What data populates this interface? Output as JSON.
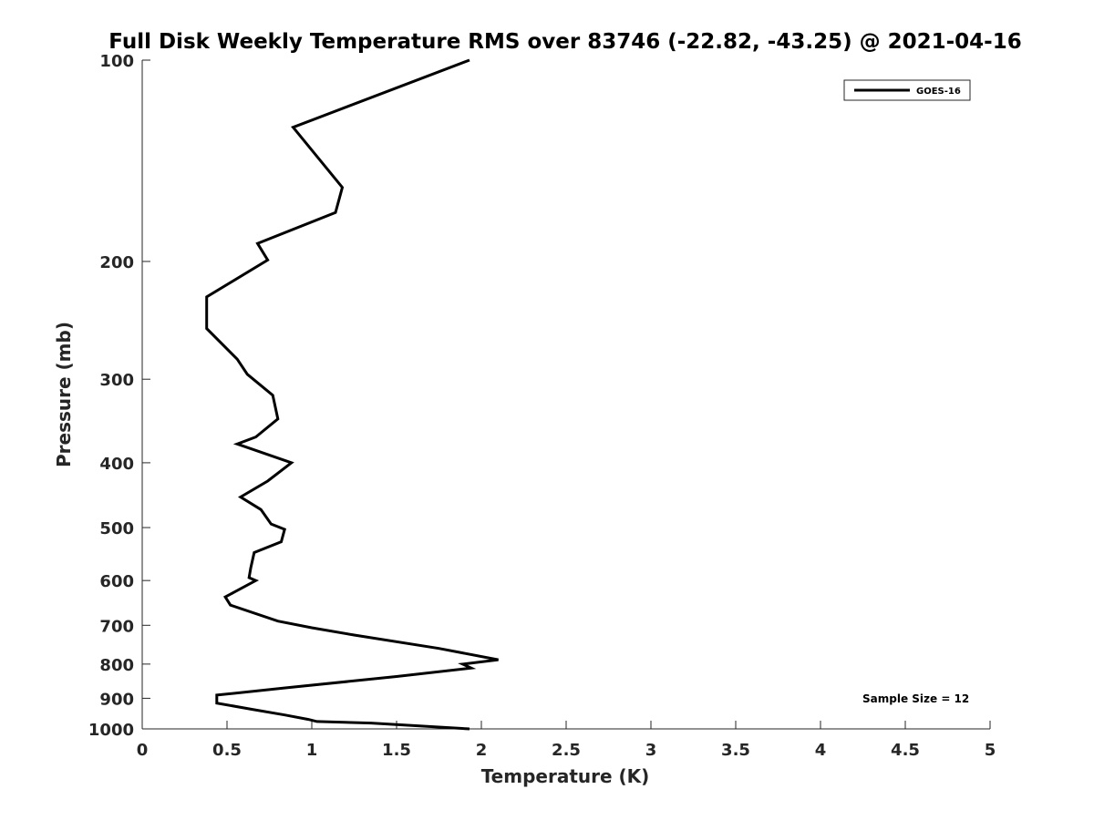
{
  "chart_data": {
    "type": "line",
    "title": "Full Disk Weekly Temperature RMS over 83746 (-22.82, -43.25) @ 2021-04-16",
    "xlabel": "Temperature (K)",
    "ylabel": "Pressure (mb)",
    "xlim": [
      0,
      5
    ],
    "ylim": [
      100,
      1000
    ],
    "y_scale": "log",
    "y_reversed": true,
    "grid": false,
    "legend_position": "top-right",
    "x_ticks": [
      "0",
      "0.5",
      "1",
      "1.5",
      "2",
      "2.5",
      "3",
      "3.5",
      "4",
      "4.5",
      "5"
    ],
    "y_ticks": [
      "100",
      "200",
      "300",
      "400",
      "500",
      "600",
      "700",
      "800",
      "900",
      "1000"
    ],
    "annotation": "Sample Size = 12",
    "series": [
      {
        "name": "GOES-16",
        "color": "#000000",
        "points": [
          [
            1.93,
            100
          ],
          [
            0.89,
            126
          ],
          [
            1.18,
            155
          ],
          [
            1.14,
            169
          ],
          [
            0.68,
            188
          ],
          [
            0.74,
            199
          ],
          [
            0.38,
            226
          ],
          [
            0.38,
            252
          ],
          [
            0.56,
            280
          ],
          [
            0.62,
            295
          ],
          [
            0.77,
            317
          ],
          [
            0.8,
            344
          ],
          [
            0.67,
            366
          ],
          [
            0.56,
            375
          ],
          [
            0.88,
            400
          ],
          [
            0.74,
            426
          ],
          [
            0.58,
            450
          ],
          [
            0.7,
            470
          ],
          [
            0.76,
            494
          ],
          [
            0.84,
            503
          ],
          [
            0.82,
            525
          ],
          [
            0.66,
            545
          ],
          [
            0.64,
            575
          ],
          [
            0.63,
            594
          ],
          [
            0.67,
            600
          ],
          [
            0.54,
            625
          ],
          [
            0.49,
            635
          ],
          [
            0.52,
            653
          ],
          [
            0.8,
            690
          ],
          [
            1.0,
            706
          ],
          [
            1.25,
            724
          ],
          [
            1.75,
            758
          ],
          [
            2.1,
            788
          ],
          [
            1.89,
            800
          ],
          [
            1.94,
            811
          ],
          [
            1.5,
            835
          ],
          [
            0.85,
            868
          ],
          [
            0.44,
            890
          ],
          [
            0.44,
            915
          ],
          [
            0.65,
            935
          ],
          [
            0.84,
            953
          ],
          [
            0.98,
            968
          ],
          [
            1.03,
            975
          ],
          [
            1.35,
            980
          ],
          [
            1.93,
            1000
          ]
        ]
      }
    ]
  }
}
